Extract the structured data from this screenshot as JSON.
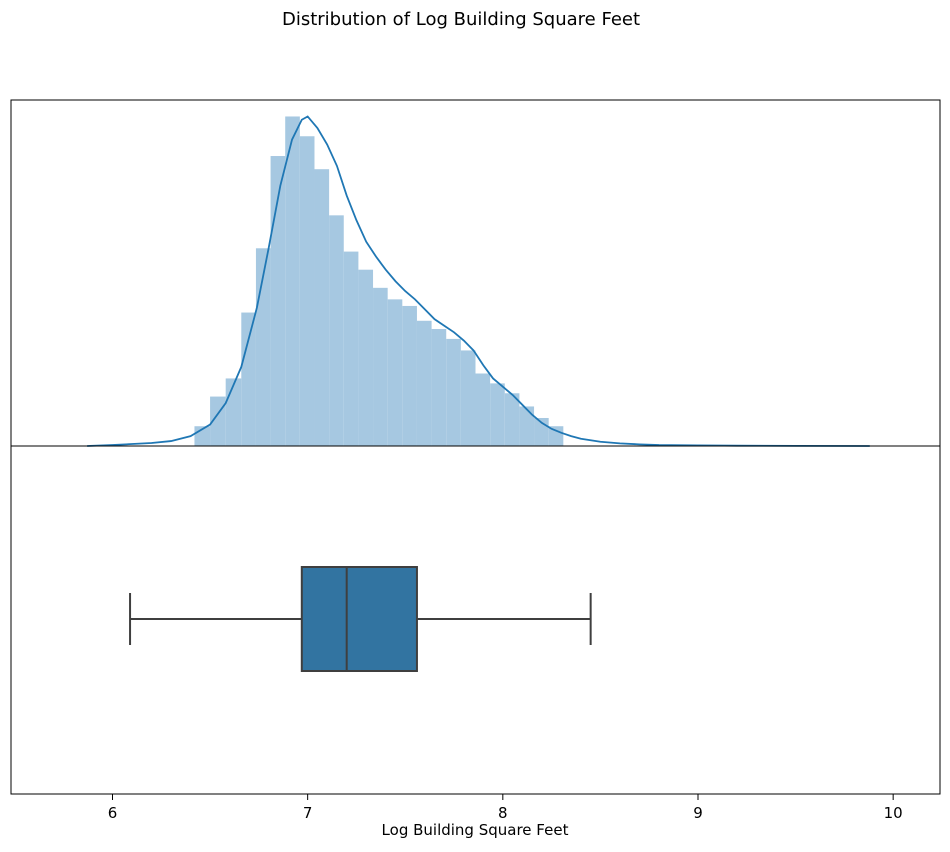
{
  "chart_data": [
    {
      "type": "histogram",
      "title": "Distribution of Log Building Square Feet",
      "xlabel": "",
      "ylabel": "",
      "xlim": [
        5.48,
        10.24
      ],
      "ylim": [
        0,
        1.05
      ],
      "xticks_shown": false,
      "yticks_shown": false,
      "bin_width": 0.076,
      "bins": [
        {
          "x0": 6.42,
          "x1": 6.5,
          "value": 0.06
        },
        {
          "x0": 6.5,
          "x1": 6.58,
          "value": 0.15
        },
        {
          "x0": 6.58,
          "x1": 6.66,
          "value": 0.205
        },
        {
          "x0": 6.66,
          "x1": 6.735,
          "value": 0.405
        },
        {
          "x0": 6.735,
          "x1": 6.81,
          "value": 0.6
        },
        {
          "x0": 6.81,
          "x1": 6.885,
          "value": 0.88
        },
        {
          "x0": 6.885,
          "x1": 6.96,
          "value": 1.0
        },
        {
          "x0": 6.96,
          "x1": 7.035,
          "value": 0.94
        },
        {
          "x0": 7.035,
          "x1": 7.11,
          "value": 0.84
        },
        {
          "x0": 7.11,
          "x1": 7.185,
          "value": 0.7
        },
        {
          "x0": 7.185,
          "x1": 7.26,
          "value": 0.59
        },
        {
          "x0": 7.26,
          "x1": 7.335,
          "value": 0.535
        },
        {
          "x0": 7.335,
          "x1": 7.41,
          "value": 0.48
        },
        {
          "x0": 7.41,
          "x1": 7.485,
          "value": 0.445
        },
        {
          "x0": 7.485,
          "x1": 7.56,
          "value": 0.425
        },
        {
          "x0": 7.56,
          "x1": 7.635,
          "value": 0.38
        },
        {
          "x0": 7.635,
          "x1": 7.71,
          "value": 0.355
        },
        {
          "x0": 7.71,
          "x1": 7.785,
          "value": 0.325
        },
        {
          "x0": 7.785,
          "x1": 7.86,
          "value": 0.29
        },
        {
          "x0": 7.86,
          "x1": 7.935,
          "value": 0.22
        },
        {
          "x0": 7.935,
          "x1": 8.01,
          "value": 0.19
        },
        {
          "x0": 8.01,
          "x1": 8.085,
          "value": 0.16
        },
        {
          "x0": 8.085,
          "x1": 8.16,
          "value": 0.12
        },
        {
          "x0": 8.16,
          "x1": 8.235,
          "value": 0.085
        },
        {
          "x0": 8.235,
          "x1": 8.31,
          "value": 0.06
        }
      ],
      "kde": {
        "x": [
          5.87,
          6.0,
          6.1,
          6.2,
          6.3,
          6.4,
          6.5,
          6.58,
          6.66,
          6.74,
          6.8,
          6.86,
          6.92,
          6.97,
          7.0,
          7.05,
          7.1,
          7.15,
          7.2,
          7.25,
          7.3,
          7.35,
          7.4,
          7.45,
          7.5,
          7.55,
          7.6,
          7.65,
          7.7,
          7.75,
          7.8,
          7.85,
          7.9,
          7.95,
          8.0,
          8.05,
          8.1,
          8.15,
          8.2,
          8.25,
          8.3,
          8.35,
          8.4,
          8.5,
          8.6,
          8.7,
          8.8,
          9.0,
          9.2,
          9.5,
          9.88
        ],
        "y": [
          0.0,
          0.003,
          0.006,
          0.009,
          0.015,
          0.03,
          0.065,
          0.13,
          0.24,
          0.42,
          0.6,
          0.79,
          0.93,
          0.99,
          1.0,
          0.965,
          0.915,
          0.85,
          0.76,
          0.685,
          0.62,
          0.575,
          0.535,
          0.5,
          0.47,
          0.445,
          0.415,
          0.385,
          0.365,
          0.345,
          0.32,
          0.29,
          0.245,
          0.205,
          0.18,
          0.155,
          0.125,
          0.095,
          0.07,
          0.052,
          0.04,
          0.03,
          0.022,
          0.013,
          0.008,
          0.005,
          0.003,
          0.002,
          0.001,
          0.0005,
          0.0
        ]
      },
      "colors": {
        "bars": "#a6c8e1",
        "kde": "#1f77b4"
      }
    },
    {
      "type": "box",
      "xlabel": "Log Building Square Feet",
      "xlim": [
        5.48,
        10.24
      ],
      "xticks": [
        6,
        7,
        8,
        9,
        10
      ],
      "box": {
        "whisker_low": 6.09,
        "q1": 6.97,
        "median": 7.2,
        "q3": 7.56,
        "whisker_high": 8.45
      },
      "colors": {
        "box": "#3274a1",
        "line": "#3f3f3f"
      }
    }
  ],
  "suptitle": "Distribution of Log Building Square Feet"
}
